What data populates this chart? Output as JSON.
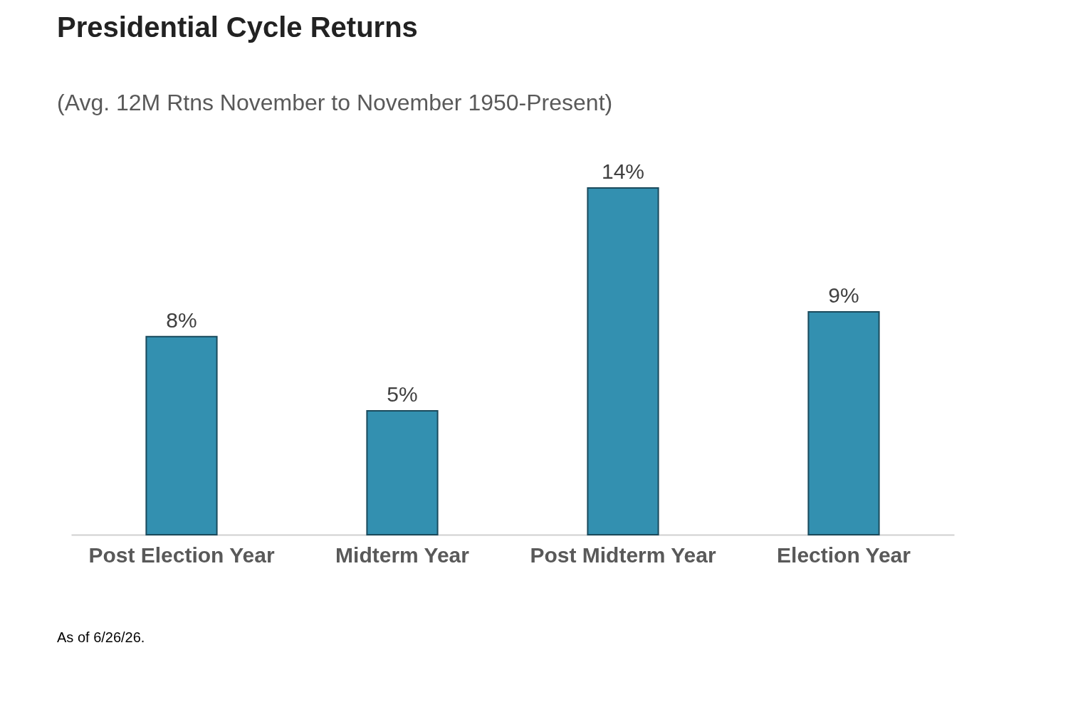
{
  "chart_data": {
    "type": "bar",
    "title": "Presidential Cycle Returns",
    "subtitle": "(Avg. 12M Rtns November to November 1950-Present)",
    "categories": [
      "Post Election Year",
      "Midterm Year",
      "Post Midterm Year",
      "Election Year"
    ],
    "values": [
      8,
      5,
      14,
      9
    ],
    "value_labels": [
      "8%",
      "5%",
      "14%",
      "9%"
    ],
    "color": "#3390b0",
    "grid": false,
    "annotations": [
      "As of 6/26/26."
    ]
  }
}
